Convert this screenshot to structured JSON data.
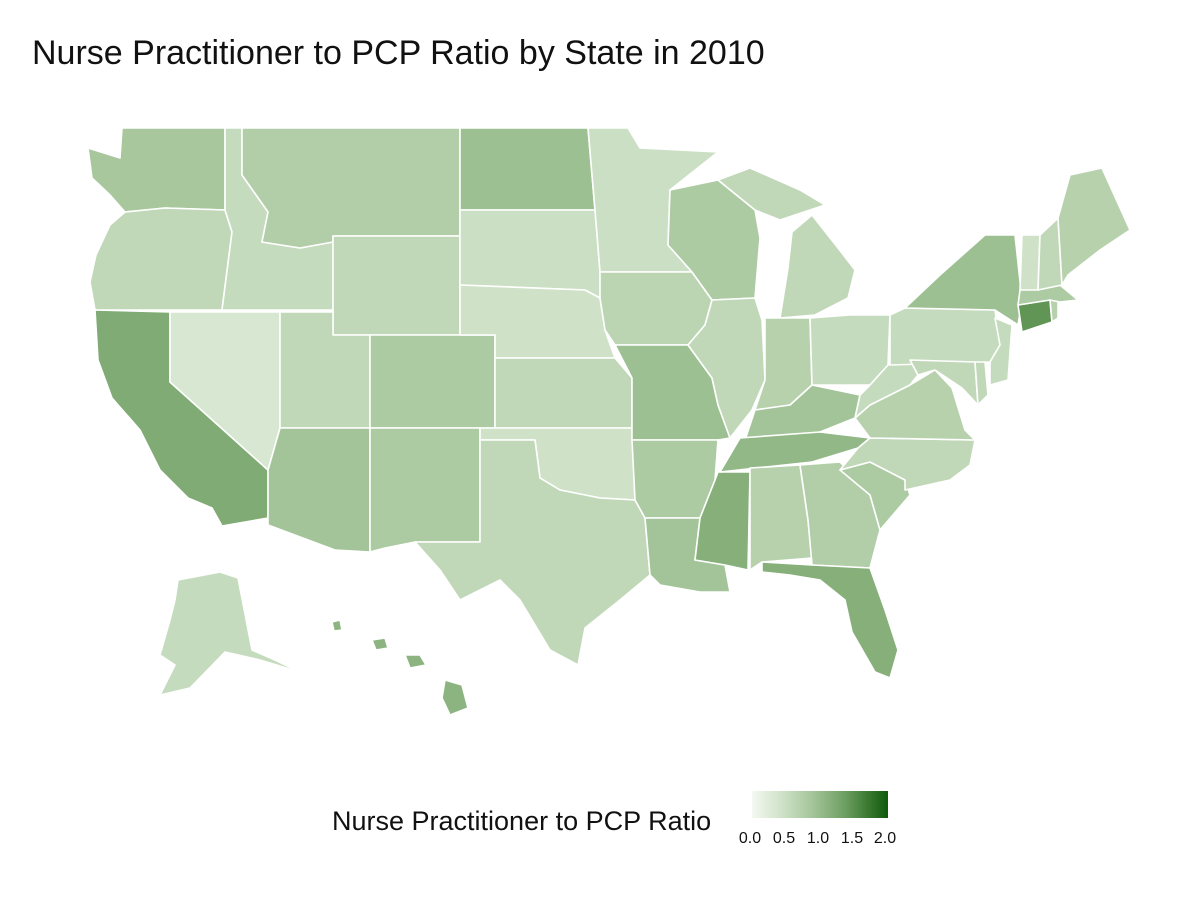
{
  "title": "Nurse Practitioner to PCP Ratio by State in 2010",
  "legend": {
    "title": "Nurse Practitioner to PCP Ratio",
    "ticks": [
      "0.0",
      "0.5",
      "1.0",
      "1.5",
      "2.0"
    ],
    "range": [
      0,
      2.0
    ],
    "colors": {
      "low": "#f4f8f1",
      "high": "#0f5a0c"
    }
  },
  "chart_data": {
    "type": "choropleth",
    "title": "Nurse Practitioner to PCP Ratio by State in 2010",
    "value_label": "Nurse Practitioner to PCP Ratio",
    "scale": [
      0,
      2.0
    ],
    "states": [
      {
        "state": "Washington",
        "value": 0.85
      },
      {
        "state": "Oregon",
        "value": 0.6
      },
      {
        "state": "California",
        "value": 1.2
      },
      {
        "state": "Nevada",
        "value": 0.35
      },
      {
        "state": "Idaho",
        "value": 0.55
      },
      {
        "state": "Montana",
        "value": 0.75
      },
      {
        "state": "Wyoming",
        "value": 0.6
      },
      {
        "state": "Utah",
        "value": 0.6
      },
      {
        "state": "Arizona",
        "value": 0.9
      },
      {
        "state": "Colorado",
        "value": 0.8
      },
      {
        "state": "New Mexico",
        "value": 0.8
      },
      {
        "state": "North Dakota",
        "value": 0.95
      },
      {
        "state": "South Dakota",
        "value": 0.5
      },
      {
        "state": "Nebraska",
        "value": 0.45
      },
      {
        "state": "Kansas",
        "value": 0.6
      },
      {
        "state": "Oklahoma",
        "value": 0.45
      },
      {
        "state": "Texas",
        "value": 0.6
      },
      {
        "state": "Minnesota",
        "value": 0.5
      },
      {
        "state": "Iowa",
        "value": 0.65
      },
      {
        "state": "Missouri",
        "value": 0.95
      },
      {
        "state": "Arkansas",
        "value": 0.8
      },
      {
        "state": "Louisiana",
        "value": 0.9
      },
      {
        "state": "Wisconsin",
        "value": 0.8
      },
      {
        "state": "Illinois",
        "value": 0.6
      },
      {
        "state": "Mississippi",
        "value": 1.15
      },
      {
        "state": "Michigan",
        "value": 0.6
      },
      {
        "state": "Indiana",
        "value": 0.7
      },
      {
        "state": "Ohio",
        "value": 0.55
      },
      {
        "state": "Kentucky",
        "value": 0.9
      },
      {
        "state": "Tennessee",
        "value": 1.05
      },
      {
        "state": "Alabama",
        "value": 0.7
      },
      {
        "state": "Georgia",
        "value": 0.75
      },
      {
        "state": "Florida",
        "value": 1.15
      },
      {
        "state": "South Carolina",
        "value": 0.8
      },
      {
        "state": "North Carolina",
        "value": 0.6
      },
      {
        "state": "Virginia",
        "value": 0.7
      },
      {
        "state": "West Virginia",
        "value": 0.55
      },
      {
        "state": "Pennsylvania",
        "value": 0.55
      },
      {
        "state": "New York",
        "value": 0.95
      },
      {
        "state": "Maryland",
        "value": 0.6
      },
      {
        "state": "Delaware",
        "value": 0.6
      },
      {
        "state": "New Jersey",
        "value": 0.55
      },
      {
        "state": "Connecticut",
        "value": 1.45
      },
      {
        "state": "Rhode Island",
        "value": 0.7
      },
      {
        "state": "Massachusetts",
        "value": 0.8
      },
      {
        "state": "Vermont",
        "value": 0.45
      },
      {
        "state": "New Hampshire",
        "value": 0.6
      },
      {
        "state": "Maine",
        "value": 0.7
      },
      {
        "state": "Alaska",
        "value": 0.55
      },
      {
        "state": "Hawaii",
        "value": 1.1
      }
    ]
  }
}
